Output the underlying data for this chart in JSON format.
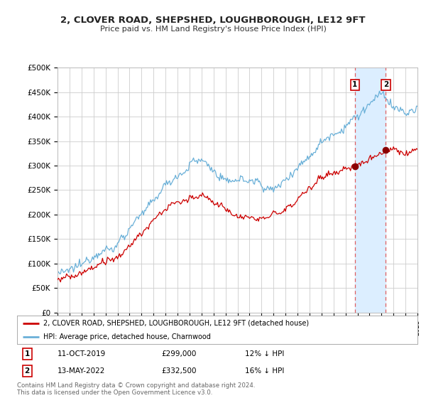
{
  "title": "2, CLOVER ROAD, SHEPSHED, LOUGHBOROUGH, LE12 9FT",
  "subtitle": "Price paid vs. HM Land Registry's House Price Index (HPI)",
  "ylabel_ticks": [
    "£0",
    "£50K",
    "£100K",
    "£150K",
    "£200K",
    "£250K",
    "£300K",
    "£350K",
    "£400K",
    "£450K",
    "£500K"
  ],
  "ytick_values": [
    0,
    50000,
    100000,
    150000,
    200000,
    250000,
    300000,
    350000,
    400000,
    450000,
    500000
  ],
  "ylim": [
    0,
    500000
  ],
  "x_start_year": 1995,
  "x_end_year": 2025,
  "hpi_color": "#6ab0d8",
  "price_color": "#cc0000",
  "marker1_year": 2019.78,
  "marker1_price": 299000,
  "marker2_year": 2022.36,
  "marker2_price": 332500,
  "vline_color": "#e06060",
  "shade_color": "#dceeff",
  "legend_line1": "2, CLOVER ROAD, SHEPSHED, LOUGHBOROUGH, LE12 9FT (detached house)",
  "legend_line2": "HPI: Average price, detached house, Charnwood",
  "note1_label": "1",
  "note1_date": "11-OCT-2019",
  "note1_price": "£299,000",
  "note1_hpi": "12% ↓ HPI",
  "note2_label": "2",
  "note2_date": "13-MAY-2022",
  "note2_price": "£332,500",
  "note2_hpi": "16% ↓ HPI",
  "footer": "Contains HM Land Registry data © Crown copyright and database right 2024.\nThis data is licensed under the Open Government Licence v3.0.",
  "background_color": "#ffffff",
  "grid_color": "#cccccc"
}
